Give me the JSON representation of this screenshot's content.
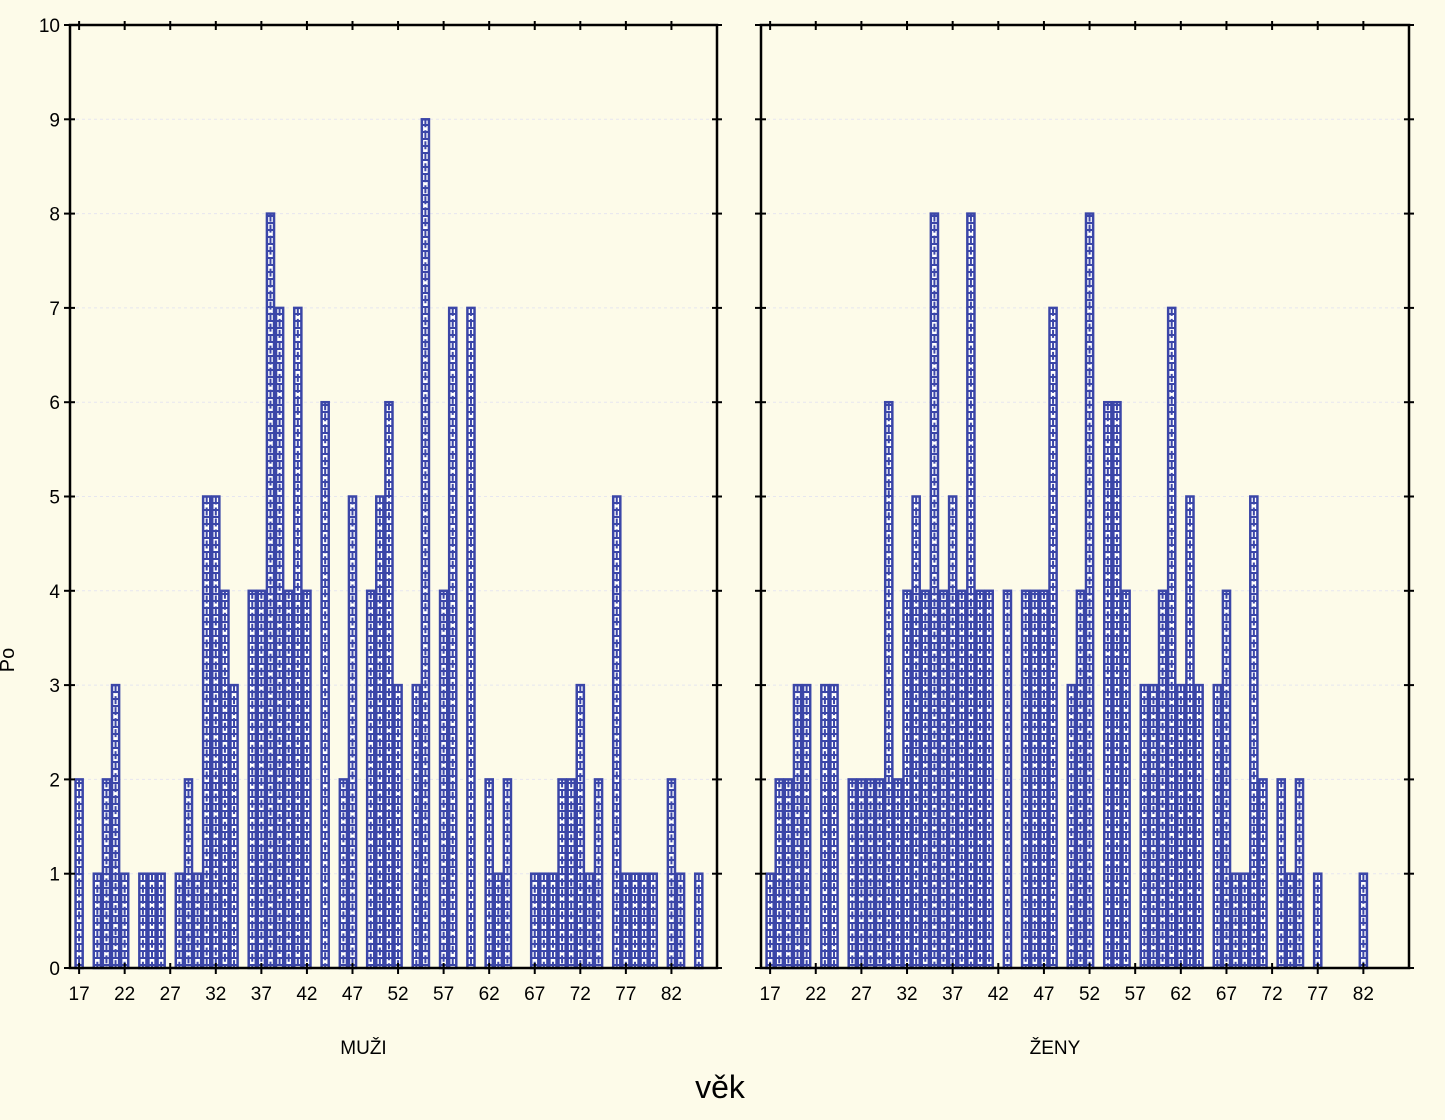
{
  "chart_data": {
    "type": "bar",
    "xlabel": "věk",
    "ylabel": "Po",
    "ylim": [
      0,
      10
    ],
    "yticks": [
      0,
      1,
      2,
      3,
      4,
      5,
      6,
      7,
      8,
      9,
      10
    ],
    "xlim": [
      16,
      87
    ],
    "xticks": [
      17,
      22,
      27,
      32,
      37,
      42,
      47,
      52,
      57,
      62,
      67,
      72,
      77,
      82
    ],
    "bar_color": "#3b46a8",
    "panels": [
      {
        "name": "MUŽI",
        "x": [
          17,
          18,
          19,
          20,
          21,
          22,
          23,
          24,
          25,
          26,
          27,
          28,
          29,
          30,
          31,
          32,
          33,
          34,
          35,
          36,
          37,
          38,
          39,
          40,
          41,
          42,
          43,
          44,
          45,
          46,
          47,
          48,
          49,
          50,
          51,
          52,
          53,
          54,
          55,
          56,
          57,
          58,
          59,
          60,
          61,
          62,
          63,
          64,
          65,
          66,
          67,
          68,
          69,
          70,
          71,
          72,
          73,
          74,
          75,
          76,
          77,
          78,
          79,
          80,
          81,
          82,
          83,
          84,
          85,
          86
        ],
        "values": [
          2,
          0,
          1,
          2,
          3,
          1,
          0,
          1,
          1,
          1,
          0,
          1,
          2,
          1,
          5,
          5,
          4,
          3,
          0,
          4,
          4,
          8,
          7,
          4,
          7,
          4,
          0,
          6,
          0,
          2,
          5,
          0,
          4,
          5,
          6,
          3,
          0,
          3,
          9,
          0,
          4,
          7,
          0,
          7,
          0,
          2,
          1,
          2,
          0,
          0,
          1,
          1,
          1,
          2,
          2,
          3,
          1,
          2,
          0,
          5,
          1,
          1,
          1,
          1,
          0,
          2,
          1,
          0,
          1,
          0
        ]
      },
      {
        "name": "ŽENY",
        "x": [
          17,
          18,
          19,
          20,
          21,
          22,
          23,
          24,
          25,
          26,
          27,
          28,
          29,
          30,
          31,
          32,
          33,
          34,
          35,
          36,
          37,
          38,
          39,
          40,
          41,
          42,
          43,
          44,
          45,
          46,
          47,
          48,
          49,
          50,
          51,
          52,
          53,
          54,
          55,
          56,
          57,
          58,
          59,
          60,
          61,
          62,
          63,
          64,
          65,
          66,
          67,
          68,
          69,
          70,
          71,
          72,
          73,
          74,
          75,
          76,
          77,
          78,
          79,
          80,
          81,
          82,
          83,
          84,
          85,
          86
        ],
        "values": [
          1,
          2,
          2,
          3,
          3,
          0,
          3,
          3,
          0,
          2,
          2,
          2,
          2,
          6,
          2,
          4,
          5,
          4,
          8,
          4,
          5,
          4,
          8,
          4,
          4,
          0,
          4,
          0,
          4,
          4,
          4,
          7,
          0,
          3,
          4,
          8,
          0,
          6,
          6,
          4,
          0,
          3,
          3,
          4,
          7,
          3,
          5,
          3,
          0,
          3,
          4,
          1,
          1,
          5,
          2,
          0,
          2,
          1,
          2,
          0,
          1,
          0,
          0,
          0,
          0,
          1,
          0,
          0,
          0,
          0
        ]
      }
    ]
  }
}
